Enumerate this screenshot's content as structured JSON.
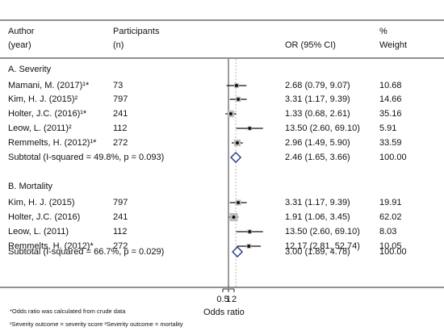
{
  "header": {
    "author_line1": "Author",
    "author_line2": "(year)",
    "participants_line1": "Participants",
    "participants_line2": "(n)",
    "or_label": "OR (95% CI)",
    "weight_line1": "%",
    "weight_line2": "Weight"
  },
  "sections": [
    {
      "title": "A. Severity",
      "rows": [
        {
          "author": "Mamani, M. (2017)¹*",
          "n": "73",
          "or_text": "2.68 (0.79, 9.07)",
          "weight": "10.68",
          "or": 2.68,
          "lo": 0.79,
          "hi": 9.07
        },
        {
          "author": "Kim, H. J. (2015)²",
          "n": "797",
          "or_text": "3.31 (1.17, 9.39)",
          "weight": "14.66",
          "or": 3.31,
          "lo": 1.17,
          "hi": 9.39
        },
        {
          "author": "Holter, J.C. (2016)¹*",
          "n": "241",
          "or_text": "1.33 (0.68, 2.61)",
          "weight": "35.16",
          "or": 1.33,
          "lo": 0.68,
          "hi": 2.61
        },
        {
          "author": "Leow, L. (2011)²",
          "n": "112",
          "or_text": "13.50 (2.60, 69.10)",
          "weight": "5.91",
          "or": 13.5,
          "lo": 2.6,
          "hi": 69.1
        },
        {
          "author": "Remmelts, H. (2012)¹*",
          "n": "272",
          "or_text": "2.96 (1.49, 5.90)",
          "weight": "33.59",
          "or": 2.96,
          "lo": 1.49,
          "hi": 5.9
        }
      ],
      "subtotal": {
        "label": "Subtotal  (I-squared = 49.8%, p = 0.093)",
        "or_text": "2.46 (1.65, 3.66)",
        "weight": "100.00",
        "or": 2.46,
        "lo": 1.65,
        "hi": 3.66
      }
    },
    {
      "title": "B. Mortality",
      "rows": [
        {
          "author": "Kim, H. J. (2015)",
          "n": "797",
          "or_text": "3.31 (1.17, 9.39)",
          "weight": "19.91",
          "or": 3.31,
          "lo": 1.17,
          "hi": 9.39
        },
        {
          "author": "Holter, J.C. (2016)",
          "n": "241",
          "or_text": "1.91 (1.06, 3.45)",
          "weight": "62.02",
          "or": 1.91,
          "lo": 1.06,
          "hi": 3.45
        },
        {
          "author": "Leow, L. (2011)",
          "n": "112",
          "or_text": "13.50 (2.60, 69.10)",
          "weight": "8.03",
          "or": 13.5,
          "lo": 2.6,
          "hi": 69.1
        },
        {
          "author": "Remmelts, H. (2012)*",
          "n": "272",
          "or_text": "12.17 (2.81, 52.74)",
          "weight": "10.05",
          "or": 12.17,
          "lo": 2.81,
          "hi": 52.74
        }
      ],
      "subtotal": {
        "label": "Subtotal  (I-squared = 66.7%, p = 0.029)",
        "or_text": "3.00 (1.89, 4.78)",
        "weight": "100.00",
        "or": 3.0,
        "lo": 1.89,
        "hi": 4.78
      }
    }
  ],
  "footnotes": {
    "note1": "*Odds ratio was calculated from crude data",
    "note2": "¹Severity outcome = severity score  ²Severity outcome = mortality"
  },
  "chart_data": {
    "type": "forest",
    "xlabel": "Odds ratio",
    "x_scale": "log",
    "ticks": [
      "0.5",
      "1",
      "2"
    ],
    "tick_values": [
      0.5,
      1,
      2
    ],
    "reference_line": 1
  }
}
